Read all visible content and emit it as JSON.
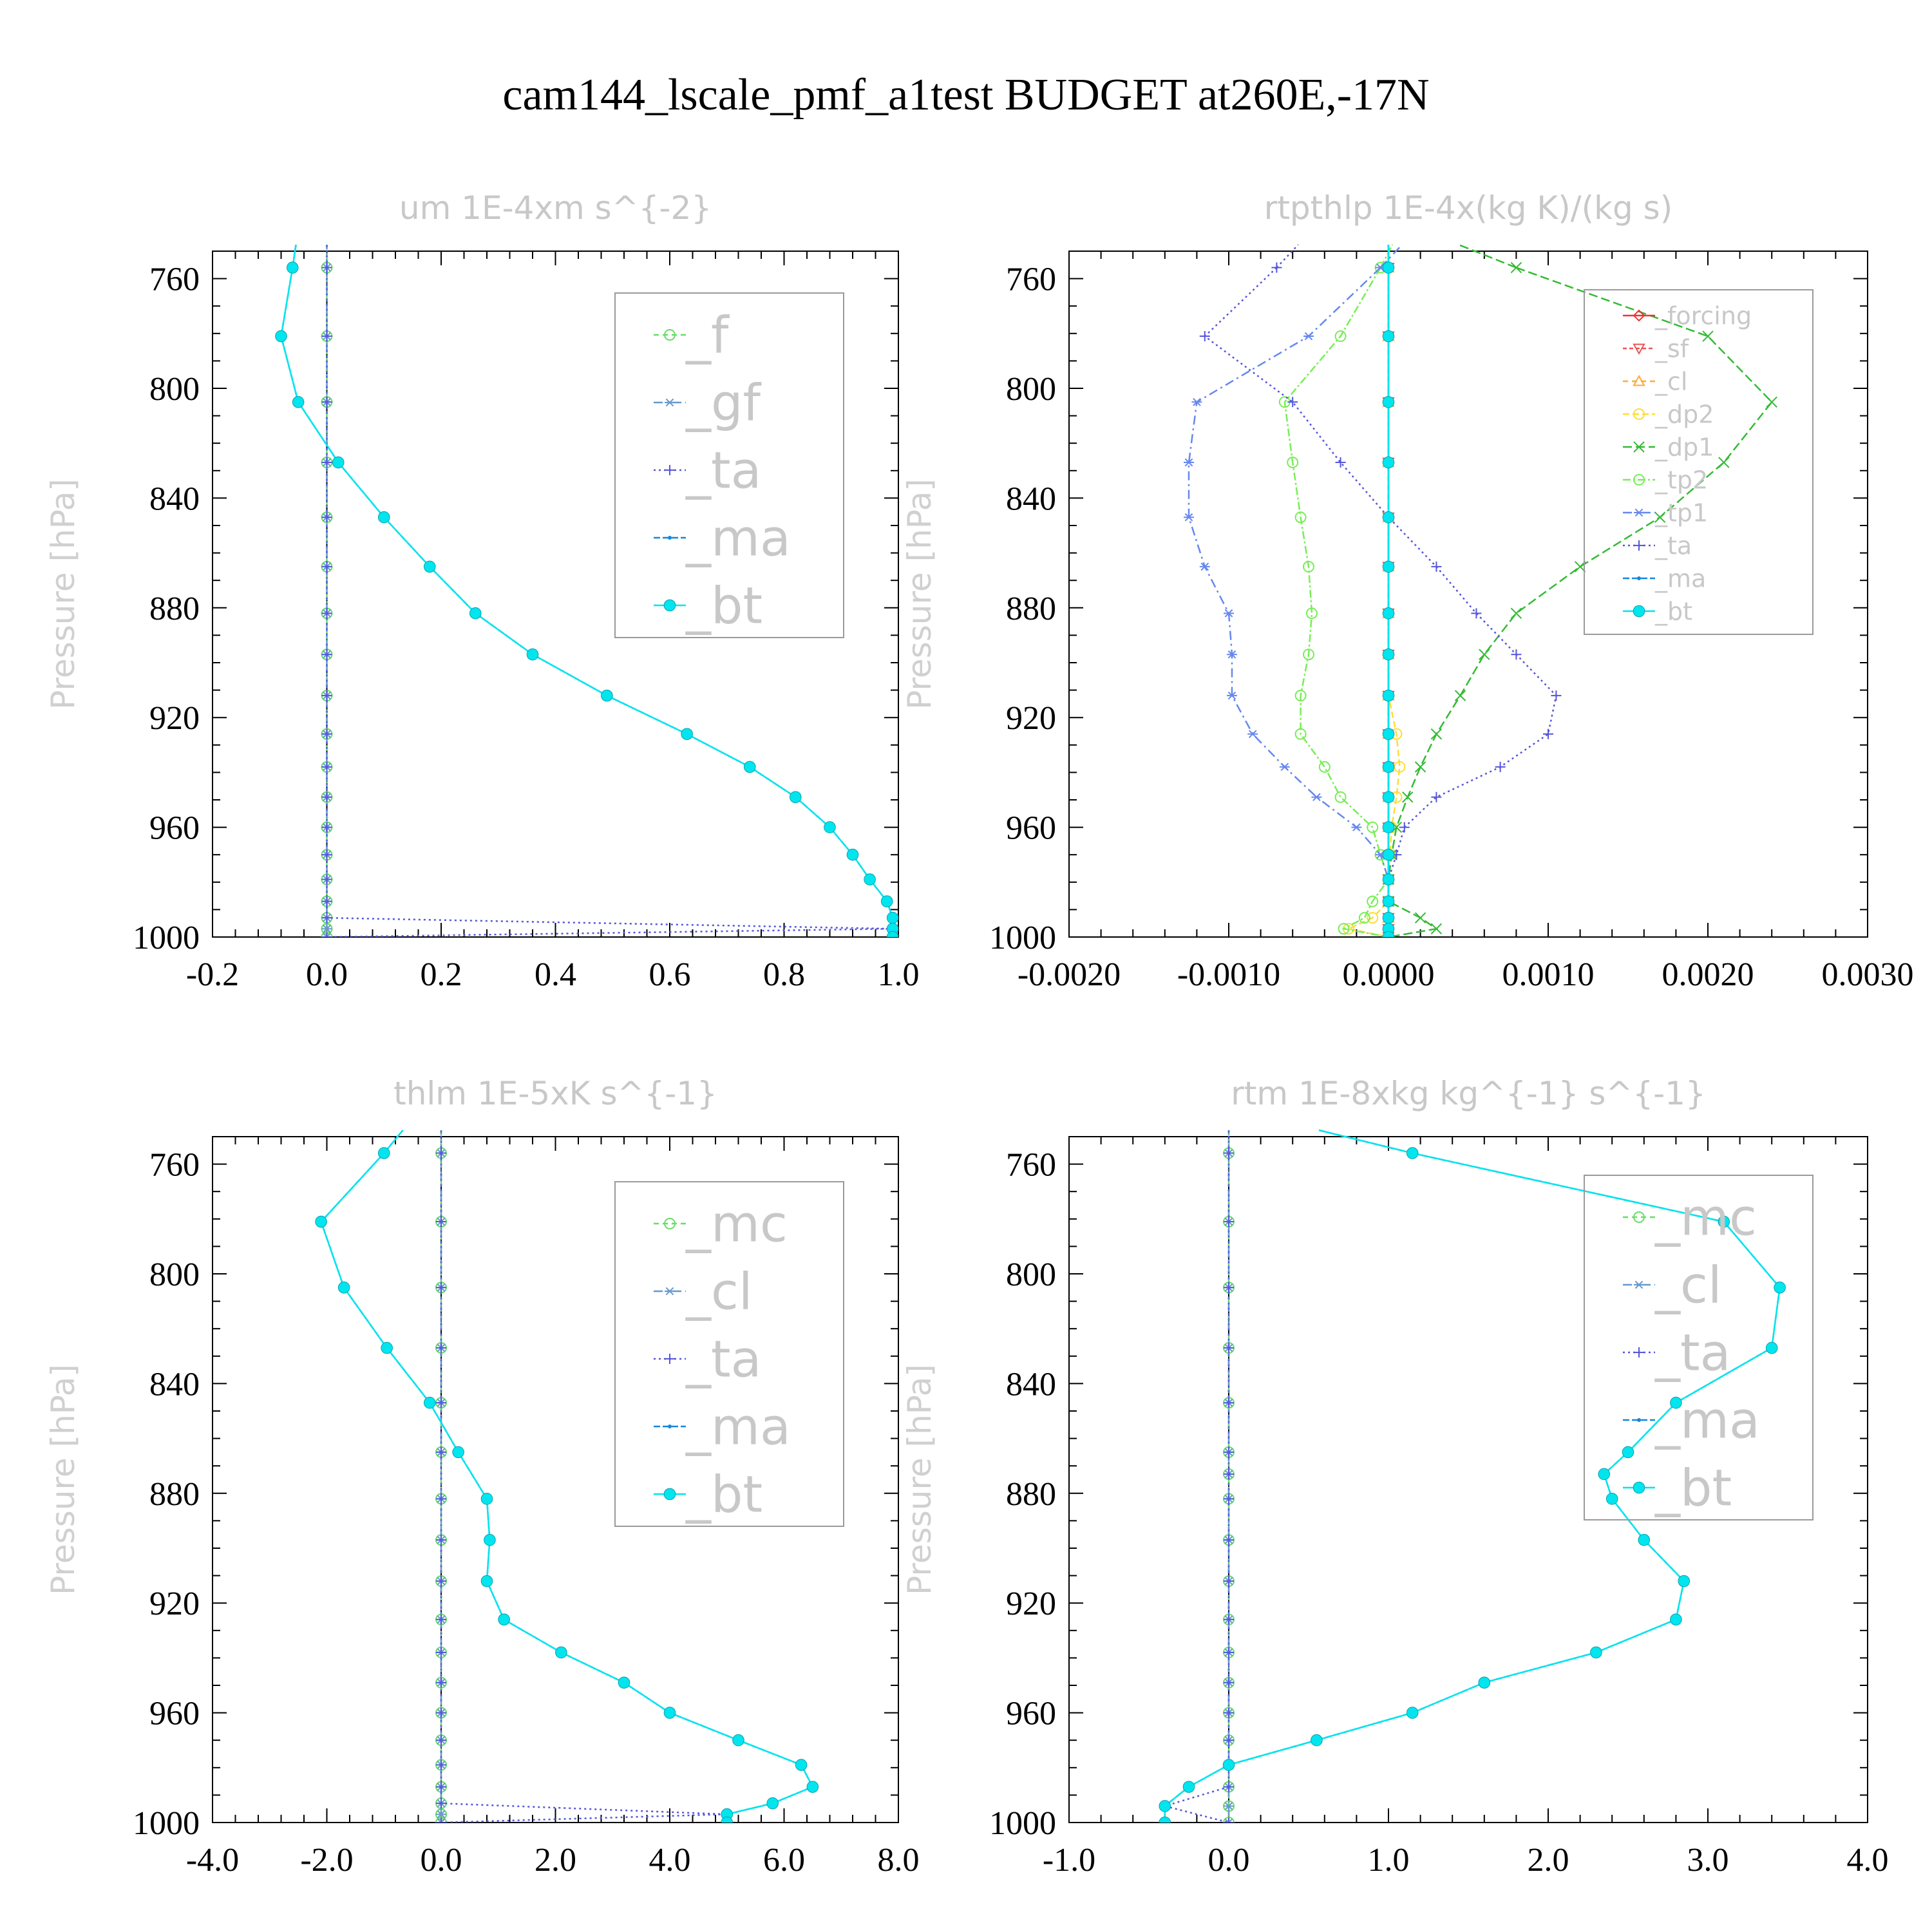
{
  "title": "cam144_lscale_pmf_a1test  BUDGET at260E,-17N",
  "colors": {
    "_f": "#66dd66",
    "_gf": "#6699cc",
    "_ta": "#5555dd",
    "_ma": "#1188dd",
    "_bt": "#00e5ee",
    "_mc": "#66dd66",
    "_cl": "#6699cc",
    "_forcing": "#ee3333",
    "_sf": "#ee5555",
    "_cl_r": "#ffaa33",
    "_dp2": "#ffdd33",
    "_dp1": "#33bb33",
    "_tp2": "#77ee55",
    "_tp1": "#6688ee"
  },
  "chart_data": [
    {
      "type": "line",
      "title": "um  1E-4xm s^{-2}",
      "ylabel": "Pressure [hPa]",
      "xlim": [
        -0.2,
        1.0
      ],
      "ylim": [
        1000,
        750
      ],
      "xticks": [
        "-0.2",
        "0.0",
        "0.2",
        "0.4",
        "0.6",
        "0.8",
        "1.0"
      ],
      "xtick_values": [
        -0.2,
        0.0,
        0.2,
        0.4,
        0.6,
        0.8,
        1.0
      ],
      "yticks": [
        "760",
        "800",
        "840",
        "880",
        "920",
        "960",
        "1000"
      ],
      "yvalues": [
        756,
        781,
        805,
        827,
        847,
        865,
        882,
        897,
        912,
        926,
        938,
        949,
        960,
        970,
        979,
        987,
        993,
        997,
        1000
      ],
      "series": [
        {
          "name": "_f",
          "color": "#66dd66",
          "marker": "circle",
          "dash": "8,6",
          "values": [
            0,
            0,
            0,
            0,
            0,
            0,
            0,
            0,
            0,
            0,
            0,
            0,
            0,
            0,
            0,
            0,
            0,
            0,
            0
          ]
        },
        {
          "name": "_gf",
          "color": "#6699cc",
          "marker": "star",
          "dash": "14,6,3,6",
          "values": [
            0,
            0,
            0,
            0,
            0,
            0,
            0,
            0,
            0,
            0,
            0,
            0,
            0,
            0,
            0,
            0,
            0,
            0,
            0
          ]
        },
        {
          "name": "_ta",
          "color": "#5555dd",
          "marker": "plus",
          "dash": "3,5",
          "values": [
            0,
            0,
            0,
            0,
            0,
            0,
            0,
            0,
            0,
            0,
            0,
            0,
            0,
            0,
            0,
            0,
            0,
            0.99,
            0
          ]
        },
        {
          "name": "_ma",
          "color": "#1188dd",
          "marker": "dot",
          "dash": "10,4",
          "values": [
            -0.06,
            -0.08,
            -0.05,
            0.02,
            0.1,
            0.18,
            0.26,
            0.36,
            0.49,
            0.63,
            0.74,
            0.82,
            0.88,
            0.92,
            0.95,
            0.98,
            0.99,
            0.99,
            0.99
          ]
        },
        {
          "name": "_bt",
          "color": "#00e5ee",
          "marker": "filled",
          "dash": "",
          "values": [
            -0.06,
            -0.08,
            -0.05,
            0.02,
            0.1,
            0.18,
            0.26,
            0.36,
            0.49,
            0.63,
            0.74,
            0.82,
            0.88,
            0.92,
            0.95,
            0.98,
            0.99,
            0.99,
            0.99
          ]
        }
      ]
    },
    {
      "type": "line",
      "title": "rtpthlp  1E-4x(kg K)/(kg s)",
      "ylabel": "Pressure [hPa]",
      "xlim": [
        -0.002,
        0.003
      ],
      "ylim": [
        1000,
        750
      ],
      "xticks": [
        "-0.0020",
        "-0.0010",
        "0.0000",
        "0.0010",
        "0.0020",
        "0.0030"
      ],
      "xtick_values": [
        -0.002,
        -0.001,
        0.0,
        0.001,
        0.002,
        0.003
      ],
      "yticks": [
        "760",
        "800",
        "840",
        "880",
        "920",
        "960",
        "1000"
      ],
      "yvalues": [
        756,
        781,
        805,
        827,
        847,
        865,
        882,
        897,
        912,
        926,
        938,
        949,
        960,
        970,
        979,
        987,
        993,
        997,
        1000
      ],
      "series": [
        {
          "name": "_forcing",
          "color": "#ee3333",
          "marker": "diamond",
          "dash": "",
          "values": [
            0,
            0,
            0,
            0,
            0,
            0,
            0,
            0,
            0,
            0,
            0,
            0,
            0,
            0,
            0,
            0,
            0,
            0,
            0
          ]
        },
        {
          "name": "_sf",
          "color": "#ee5555",
          "marker": "tridown",
          "dash": "6,4",
          "values": [
            0,
            0,
            0,
            0,
            0,
            0,
            0,
            0,
            0,
            0,
            0,
            0,
            0,
            0,
            0,
            0,
            0,
            0,
            0
          ]
        },
        {
          "name": "_cl",
          "color": "#ffaa33",
          "marker": "triup",
          "dash": "8,6",
          "values": [
            0,
            0,
            0,
            0,
            0,
            0,
            0,
            0,
            0,
            0,
            0,
            0,
            0,
            0,
            0,
            0,
            0,
            0,
            0
          ]
        },
        {
          "name": "_dp2",
          "color": "#ffdd33",
          "marker": "circle",
          "dash": "10,5",
          "values": [
            0,
            0,
            0,
            0,
            0,
            0,
            0,
            0,
            0,
            5e-05,
            7e-05,
            5e-05,
            2e-05,
            1e-05,
            0,
            0,
            -0.0001,
            -0.00025,
            0
          ]
        },
        {
          "name": "_dp1",
          "color": "#33bb33",
          "marker": "cross",
          "dash": "14,6",
          "values": [
            0.0008,
            0.002,
            0.0024,
            0.0021,
            0.0017,
            0.0012,
            0.0008,
            0.0006,
            0.00045,
            0.0003,
            0.0002,
            0.00012,
            5e-05,
            2e-05,
            0,
            0,
            0.0002,
            0.0003,
            0
          ]
        },
        {
          "name": "_tp2",
          "color": "#77ee55",
          "marker": "circle",
          "dash": "12,4,3,4",
          "values": [
            -5e-05,
            -0.0003,
            -0.00065,
            -0.0006,
            -0.00055,
            -0.0005,
            -0.00048,
            -0.0005,
            -0.00055,
            -0.00055,
            -0.0004,
            -0.0003,
            -0.0001,
            -5e-05,
            0,
            -0.0001,
            -0.00015,
            -0.00028,
            0
          ]
        },
        {
          "name": "_tp1",
          "color": "#6688ee",
          "marker": "star",
          "dash": "14,6,3,6",
          "values": [
            -5e-05,
            -0.0005,
            -0.0012,
            -0.00125,
            -0.00125,
            -0.00115,
            -0.001,
            -0.00098,
            -0.00098,
            -0.00085,
            -0.00065,
            -0.00045,
            -0.0002,
            -5e-05,
            0,
            0,
            0,
            0,
            0
          ]
        },
        {
          "name": "_ta",
          "color": "#5555dd",
          "marker": "plus",
          "dash": "3,5",
          "values": [
            -0.0007,
            -0.00115,
            -0.0006,
            -0.0003,
            0,
            0.0003,
            0.00055,
            0.0008,
            0.00105,
            0.001,
            0.0007,
            0.0003,
            0.0001,
            5e-05,
            0,
            0,
            0,
            0,
            0
          ]
        },
        {
          "name": "_ma",
          "color": "#1188dd",
          "marker": "dot",
          "dash": "10,4",
          "values": [
            0,
            0,
            0,
            0,
            0,
            0,
            0,
            0,
            0,
            0,
            0,
            0,
            0,
            0,
            0,
            0,
            0,
            0,
            0
          ]
        },
        {
          "name": "_bt",
          "color": "#00e5ee",
          "marker": "filled",
          "dash": "",
          "values": [
            0,
            0,
            0,
            0,
            0,
            0,
            0,
            0,
            0,
            0,
            0,
            0,
            0,
            0,
            0,
            0,
            0,
            0,
            0
          ]
        }
      ]
    },
    {
      "type": "line",
      "title": "thlm  1E-5xK s^{-1}",
      "ylabel": "Pressure [hPa]",
      "xlim": [
        -4.0,
        8.0
      ],
      "ylim": [
        1000,
        750
      ],
      "xticks": [
        "-4.0",
        "-2.0",
        "0.0",
        "2.0",
        "4.0",
        "6.0",
        "8.0"
      ],
      "xtick_values": [
        -4.0,
        -2.0,
        0.0,
        2.0,
        4.0,
        6.0,
        8.0
      ],
      "yticks": [
        "760",
        "800",
        "840",
        "880",
        "920",
        "960",
        "1000"
      ],
      "yvalues": [
        756,
        781,
        805,
        827,
        847,
        865,
        882,
        897,
        912,
        926,
        938,
        949,
        960,
        970,
        979,
        987,
        993,
        997,
        1000
      ],
      "series": [
        {
          "name": "_mc",
          "color": "#66dd66",
          "marker": "circle",
          "dash": "8,6",
          "values": [
            0,
            0,
            0,
            0,
            0,
            0,
            0,
            0,
            0,
            0,
            0,
            0,
            0,
            0,
            0,
            0,
            0,
            0,
            0
          ]
        },
        {
          "name": "_cl",
          "color": "#6699cc",
          "marker": "star",
          "dash": "14,6,3,6",
          "values": [
            0,
            0,
            0,
            0,
            0,
            0,
            0,
            0,
            0,
            0,
            0,
            0,
            0,
            0,
            0,
            0,
            0,
            0,
            0
          ]
        },
        {
          "name": "_ta",
          "color": "#5555dd",
          "marker": "plus",
          "dash": "3,5",
          "values": [
            0,
            0,
            0,
            0,
            0,
            0,
            0,
            0,
            0,
            0,
            0,
            0,
            0,
            0,
            0,
            0,
            0,
            5.0,
            0
          ]
        },
        {
          "name": "_ma",
          "color": "#1188dd",
          "marker": "dot",
          "dash": "10,4",
          "values": [
            -1.0,
            -2.1,
            -1.7,
            -0.95,
            -0.2,
            0.3,
            0.8,
            0.85,
            0.8,
            1.1,
            2.1,
            3.2,
            4.0,
            5.2,
            6.3,
            6.5,
            5.8,
            5.0,
            5.0
          ]
        },
        {
          "name": "_bt",
          "color": "#00e5ee",
          "marker": "filled",
          "dash": "",
          "values": [
            -1.0,
            -2.1,
            -1.7,
            -0.95,
            -0.2,
            0.3,
            0.8,
            0.85,
            0.8,
            1.1,
            2.1,
            3.2,
            4.0,
            5.2,
            6.3,
            6.5,
            5.8,
            5.0,
            5.0
          ]
        }
      ]
    },
    {
      "type": "line",
      "title": "rtm  1E-8xkg kg^{-1} s^{-1}",
      "ylabel": "Pressure [hPa]",
      "xlim": [
        -1.0,
        4.0
      ],
      "ylim": [
        1000,
        750
      ],
      "xticks": [
        "-1.0",
        "0.0",
        "1.0",
        "2.0",
        "3.0",
        "4.0"
      ],
      "xtick_values": [
        -1.0,
        0.0,
        1.0,
        2.0,
        3.0,
        4.0
      ],
      "yticks": [
        "760",
        "800",
        "840",
        "880",
        "920",
        "960",
        "1000"
      ],
      "yvalues": [
        756,
        781,
        805,
        827,
        847,
        865,
        873,
        882,
        897,
        912,
        926,
        938,
        949,
        960,
        970,
        979,
        987,
        994,
        1000
      ],
      "series": [
        {
          "name": "_mc",
          "color": "#66dd66",
          "marker": "circle",
          "dash": "8,6",
          "values": [
            0,
            0,
            0,
            0,
            0,
            0,
            0,
            0,
            0,
            0,
            0,
            0,
            0,
            0,
            0,
            0,
            0,
            0,
            0
          ]
        },
        {
          "name": "_cl",
          "color": "#6699cc",
          "marker": "star",
          "dash": "14,6,3,6",
          "values": [
            0,
            0,
            0,
            0,
            0,
            0,
            0,
            0,
            0,
            0,
            0,
            0,
            0,
            0,
            0,
            0,
            0,
            0,
            0
          ]
        },
        {
          "name": "_ta",
          "color": "#5555dd",
          "marker": "plus",
          "dash": "3,5",
          "values": [
            0,
            0,
            0,
            0,
            0,
            0,
            0,
            0,
            0,
            0,
            0,
            0,
            0,
            0,
            0,
            0,
            0,
            -0.4,
            0
          ]
        },
        {
          "name": "_ma",
          "color": "#1188dd",
          "marker": "dot",
          "dash": "10,4",
          "values": [
            1.15,
            3.1,
            3.45,
            3.4,
            2.8,
            2.5,
            2.35,
            2.4,
            2.6,
            2.85,
            2.8,
            2.3,
            1.6,
            1.15,
            0.55,
            0.0,
            -0.25,
            -0.4,
            -0.4
          ]
        },
        {
          "name": "_bt",
          "color": "#00e5ee",
          "marker": "filled",
          "dash": "",
          "values": [
            1.15,
            3.1,
            3.45,
            3.4,
            2.8,
            2.5,
            2.35,
            2.4,
            2.6,
            2.85,
            2.8,
            2.3,
            1.6,
            1.15,
            0.55,
            0.0,
            -0.25,
            -0.4,
            -0.4
          ]
        }
      ]
    }
  ]
}
